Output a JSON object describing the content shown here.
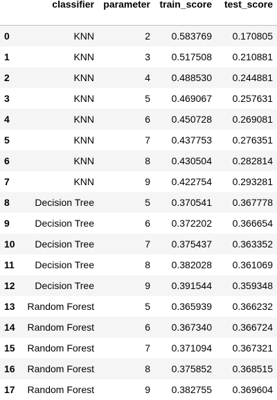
{
  "table": {
    "columns": [
      "",
      "classifier",
      "parameter",
      "train_score",
      "test_score"
    ],
    "rows": [
      {
        "index": "0",
        "classifier": "KNN",
        "parameter": "2",
        "train_score": "0.583769",
        "test_score": "0.170805"
      },
      {
        "index": "1",
        "classifier": "KNN",
        "parameter": "3",
        "train_score": "0.517508",
        "test_score": "0.210881"
      },
      {
        "index": "2",
        "classifier": "KNN",
        "parameter": "4",
        "train_score": "0.488530",
        "test_score": "0.244881"
      },
      {
        "index": "3",
        "classifier": "KNN",
        "parameter": "5",
        "train_score": "0.469067",
        "test_score": "0.257631"
      },
      {
        "index": "4",
        "classifier": "KNN",
        "parameter": "6",
        "train_score": "0.450728",
        "test_score": "0.269081"
      },
      {
        "index": "5",
        "classifier": "KNN",
        "parameter": "7",
        "train_score": "0.437753",
        "test_score": "0.276351"
      },
      {
        "index": "6",
        "classifier": "KNN",
        "parameter": "8",
        "train_score": "0.430504",
        "test_score": "0.282814"
      },
      {
        "index": "7",
        "classifier": "KNN",
        "parameter": "9",
        "train_score": "0.422754",
        "test_score": "0.293281"
      },
      {
        "index": "8",
        "classifier": "Decision Tree",
        "parameter": "5",
        "train_score": "0.370541",
        "test_score": "0.367778"
      },
      {
        "index": "9",
        "classifier": "Decision Tree",
        "parameter": "6",
        "train_score": "0.372202",
        "test_score": "0.366654"
      },
      {
        "index": "10",
        "classifier": "Decision Tree",
        "parameter": "7",
        "train_score": "0.375437",
        "test_score": "0.363352"
      },
      {
        "index": "11",
        "classifier": "Decision Tree",
        "parameter": "8",
        "train_score": "0.382028",
        "test_score": "0.361069"
      },
      {
        "index": "12",
        "classifier": "Decision Tree",
        "parameter": "9",
        "train_score": "0.391544",
        "test_score": "0.359348"
      },
      {
        "index": "13",
        "classifier": "Random Forest",
        "parameter": "5",
        "train_score": "0.365939",
        "test_score": "0.366232"
      },
      {
        "index": "14",
        "classifier": "Random Forest",
        "parameter": "6",
        "train_score": "0.367340",
        "test_score": "0.366724"
      },
      {
        "index": "15",
        "classifier": "Random Forest",
        "parameter": "7",
        "train_score": "0.371094",
        "test_score": "0.367321"
      },
      {
        "index": "16",
        "classifier": "Random Forest",
        "parameter": "8",
        "train_score": "0.375852",
        "test_score": "0.368515"
      },
      {
        "index": "17",
        "classifier": "Random Forest",
        "parameter": "9",
        "train_score": "0.382755",
        "test_score": "0.369604"
      }
    ]
  }
}
